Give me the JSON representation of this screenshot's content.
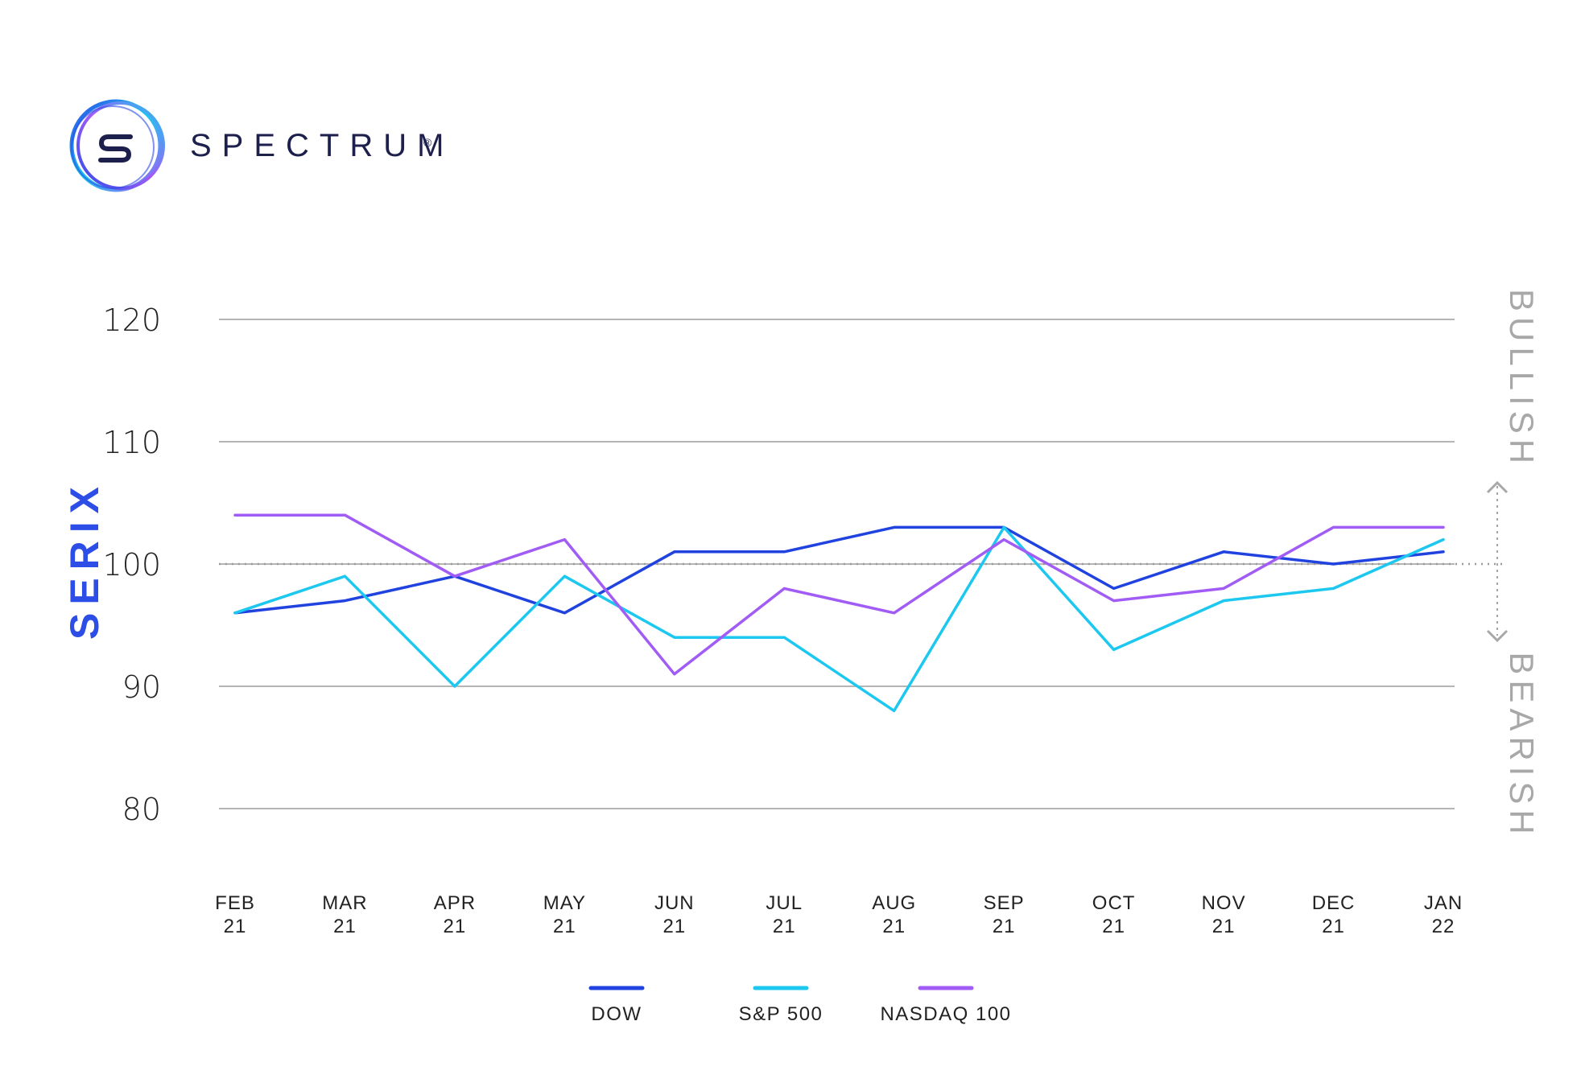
{
  "brand": {
    "name": "SPECTRUM",
    "mark": "®"
  },
  "colors": {
    "brand_text": "#1d1f4d",
    "dow": "#2043e0",
    "sp500": "#1cc8ef",
    "nasdaq": "#a25cf6",
    "grid": "#b5b5b5",
    "baseline": "#9a9a9a",
    "axis_text": "#222222",
    "ylabel": "#2c4ee6",
    "sentiment": "#a8a8a8"
  },
  "chart_data": {
    "type": "line",
    "ylabel": "SERIX",
    "xlabel": "",
    "ylim": [
      80,
      120
    ],
    "yticks": [
      80,
      90,
      100,
      110,
      120
    ],
    "reference_line": 100,
    "grid": true,
    "legend_position": "bottom-center",
    "categories": [
      [
        "FEB",
        "21"
      ],
      [
        "MAR",
        "21"
      ],
      [
        "APR",
        "21"
      ],
      [
        "MAY",
        "21"
      ],
      [
        "JUN",
        "21"
      ],
      [
        "JUL",
        "21"
      ],
      [
        "AUG",
        "21"
      ],
      [
        "SEP",
        "21"
      ],
      [
        "OCT",
        "21"
      ],
      [
        "NOV",
        "21"
      ],
      [
        "DEC",
        "21"
      ],
      [
        "JAN",
        "22"
      ]
    ],
    "series": [
      {
        "name": "DOW",
        "color": "#2043e0",
        "values": [
          96,
          97,
          99,
          96,
          101,
          101,
          103,
          103,
          98,
          101,
          100,
          101
        ]
      },
      {
        "name": "S&P 500",
        "color": "#1cc8ef",
        "values": [
          96,
          99,
          90,
          99,
          94,
          94,
          88,
          103,
          93,
          97,
          98,
          102
        ]
      },
      {
        "name": "NASDAQ 100",
        "color": "#a25cf6",
        "values": [
          104,
          104,
          99,
          102,
          91,
          98,
          96,
          102,
          97,
          98,
          103,
          103
        ]
      }
    ],
    "annotations": {
      "upper": "BULLISH",
      "lower": "BEARISH"
    }
  }
}
